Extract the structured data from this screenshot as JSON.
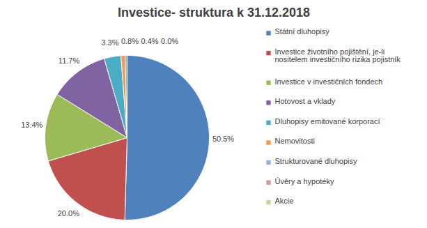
{
  "chart_data": {
    "type": "pie",
    "title": "Investice- struktura k 31.12.2018",
    "categories": [
      "Státní dluhopisy",
      "Investice životního pojištění, je-li nositelem investičního rizika pojistník",
      "Investice v investičních fondech",
      "Hotovost a vklady",
      "Dluhopisy emitované korporací",
      "Nemovitosti",
      "Strukturované dluhopisy",
      "Úvěry a hypotéky",
      "Akcie"
    ],
    "values": [
      50.5,
      20.0,
      13.4,
      11.7,
      3.3,
      0.8,
      0.4,
      0.0,
      0.0
    ],
    "value_labels": [
      "50.5%",
      "20.0%",
      "13.4%",
      "11.7%",
      "3.3%",
      "0.8%",
      "0.4%",
      "0.0%",
      null
    ],
    "colors": [
      "#4F81BD",
      "#C0504D",
      "#9BBB59",
      "#8064A2",
      "#4BACC6",
      "#F79646",
      "#95B3D7",
      "#D99694",
      "#C3D69B"
    ],
    "data_labels": true,
    "legend": "right"
  }
}
